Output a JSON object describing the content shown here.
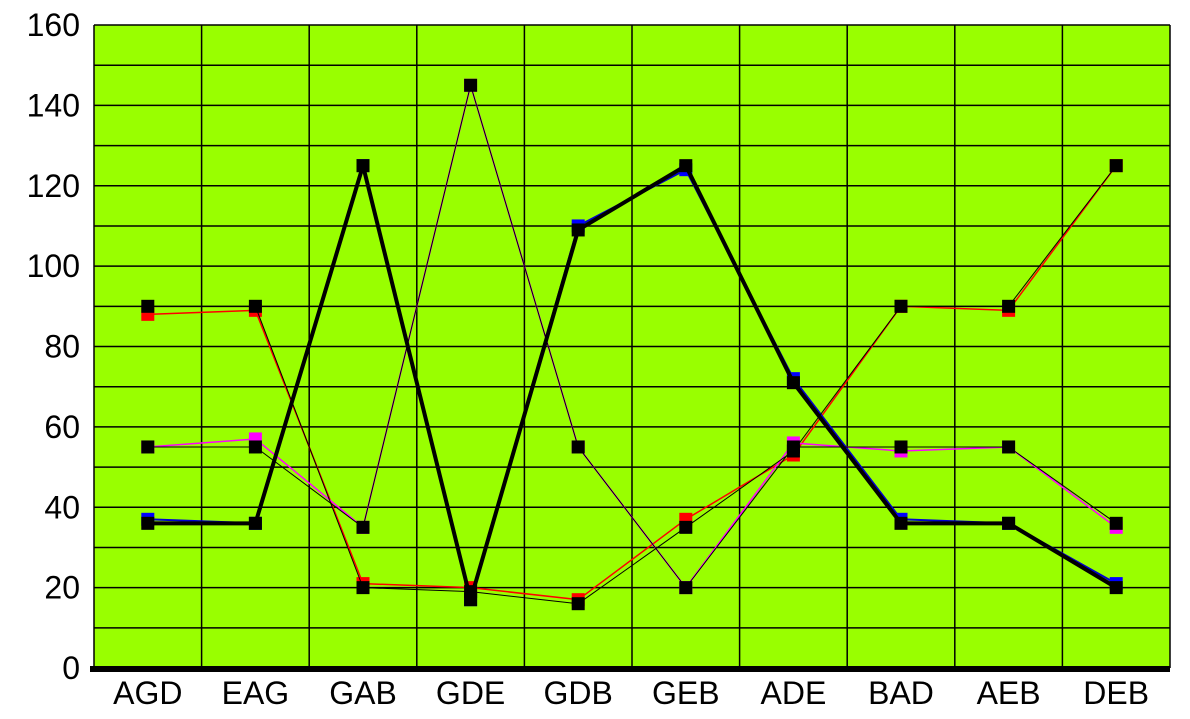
{
  "chart_data": {
    "type": "line",
    "title": "",
    "xlabel": "",
    "ylabel": "",
    "categories": [
      "AGD",
      "EAG",
      "GAB",
      "GDE",
      "GDB",
      "GEB",
      "ADE",
      "BAD",
      "AEB",
      "DEB"
    ],
    "ylim": [
      0,
      160
    ],
    "yticks": [
      0,
      20,
      40,
      60,
      80,
      100,
      120,
      140,
      160
    ],
    "grid": true,
    "minor_grid_step": 10,
    "legend": "none",
    "plot_background": "#99ff00",
    "series": [
      {
        "color": "#ff0000",
        "marker_color": "#ff0000",
        "stroke": 1.5,
        "values": [
          88,
          89,
          21,
          20,
          17,
          37,
          53,
          90,
          89,
          125
        ]
      },
      {
        "color": "#ff00ff",
        "marker_color": "#ff00ff",
        "stroke": 1.5,
        "values": [
          55,
          57,
          35,
          145,
          55,
          20,
          56,
          54,
          55,
          35
        ]
      },
      {
        "color": "#0000cc",
        "marker_color": "#0000ff",
        "stroke": 2,
        "values": [
          37,
          36,
          125,
          17,
          110,
          124,
          72,
          37,
          36,
          21
        ]
      },
      {
        "color": "#000000",
        "marker_color": "#000000",
        "stroke": 1,
        "values": [
          90,
          90,
          20,
          19,
          16,
          35,
          54,
          90,
          90,
          125
        ]
      },
      {
        "color": "#000000",
        "marker_color": "#000000",
        "stroke": 1,
        "values": [
          55,
          55,
          35,
          145,
          55,
          20,
          55,
          55,
          55,
          36
        ]
      },
      {
        "color": "#000000",
        "marker_color": "#000000",
        "stroke": 4,
        "values": [
          36,
          36,
          125,
          17,
          109,
          125,
          71,
          36,
          36,
          20
        ]
      }
    ]
  }
}
